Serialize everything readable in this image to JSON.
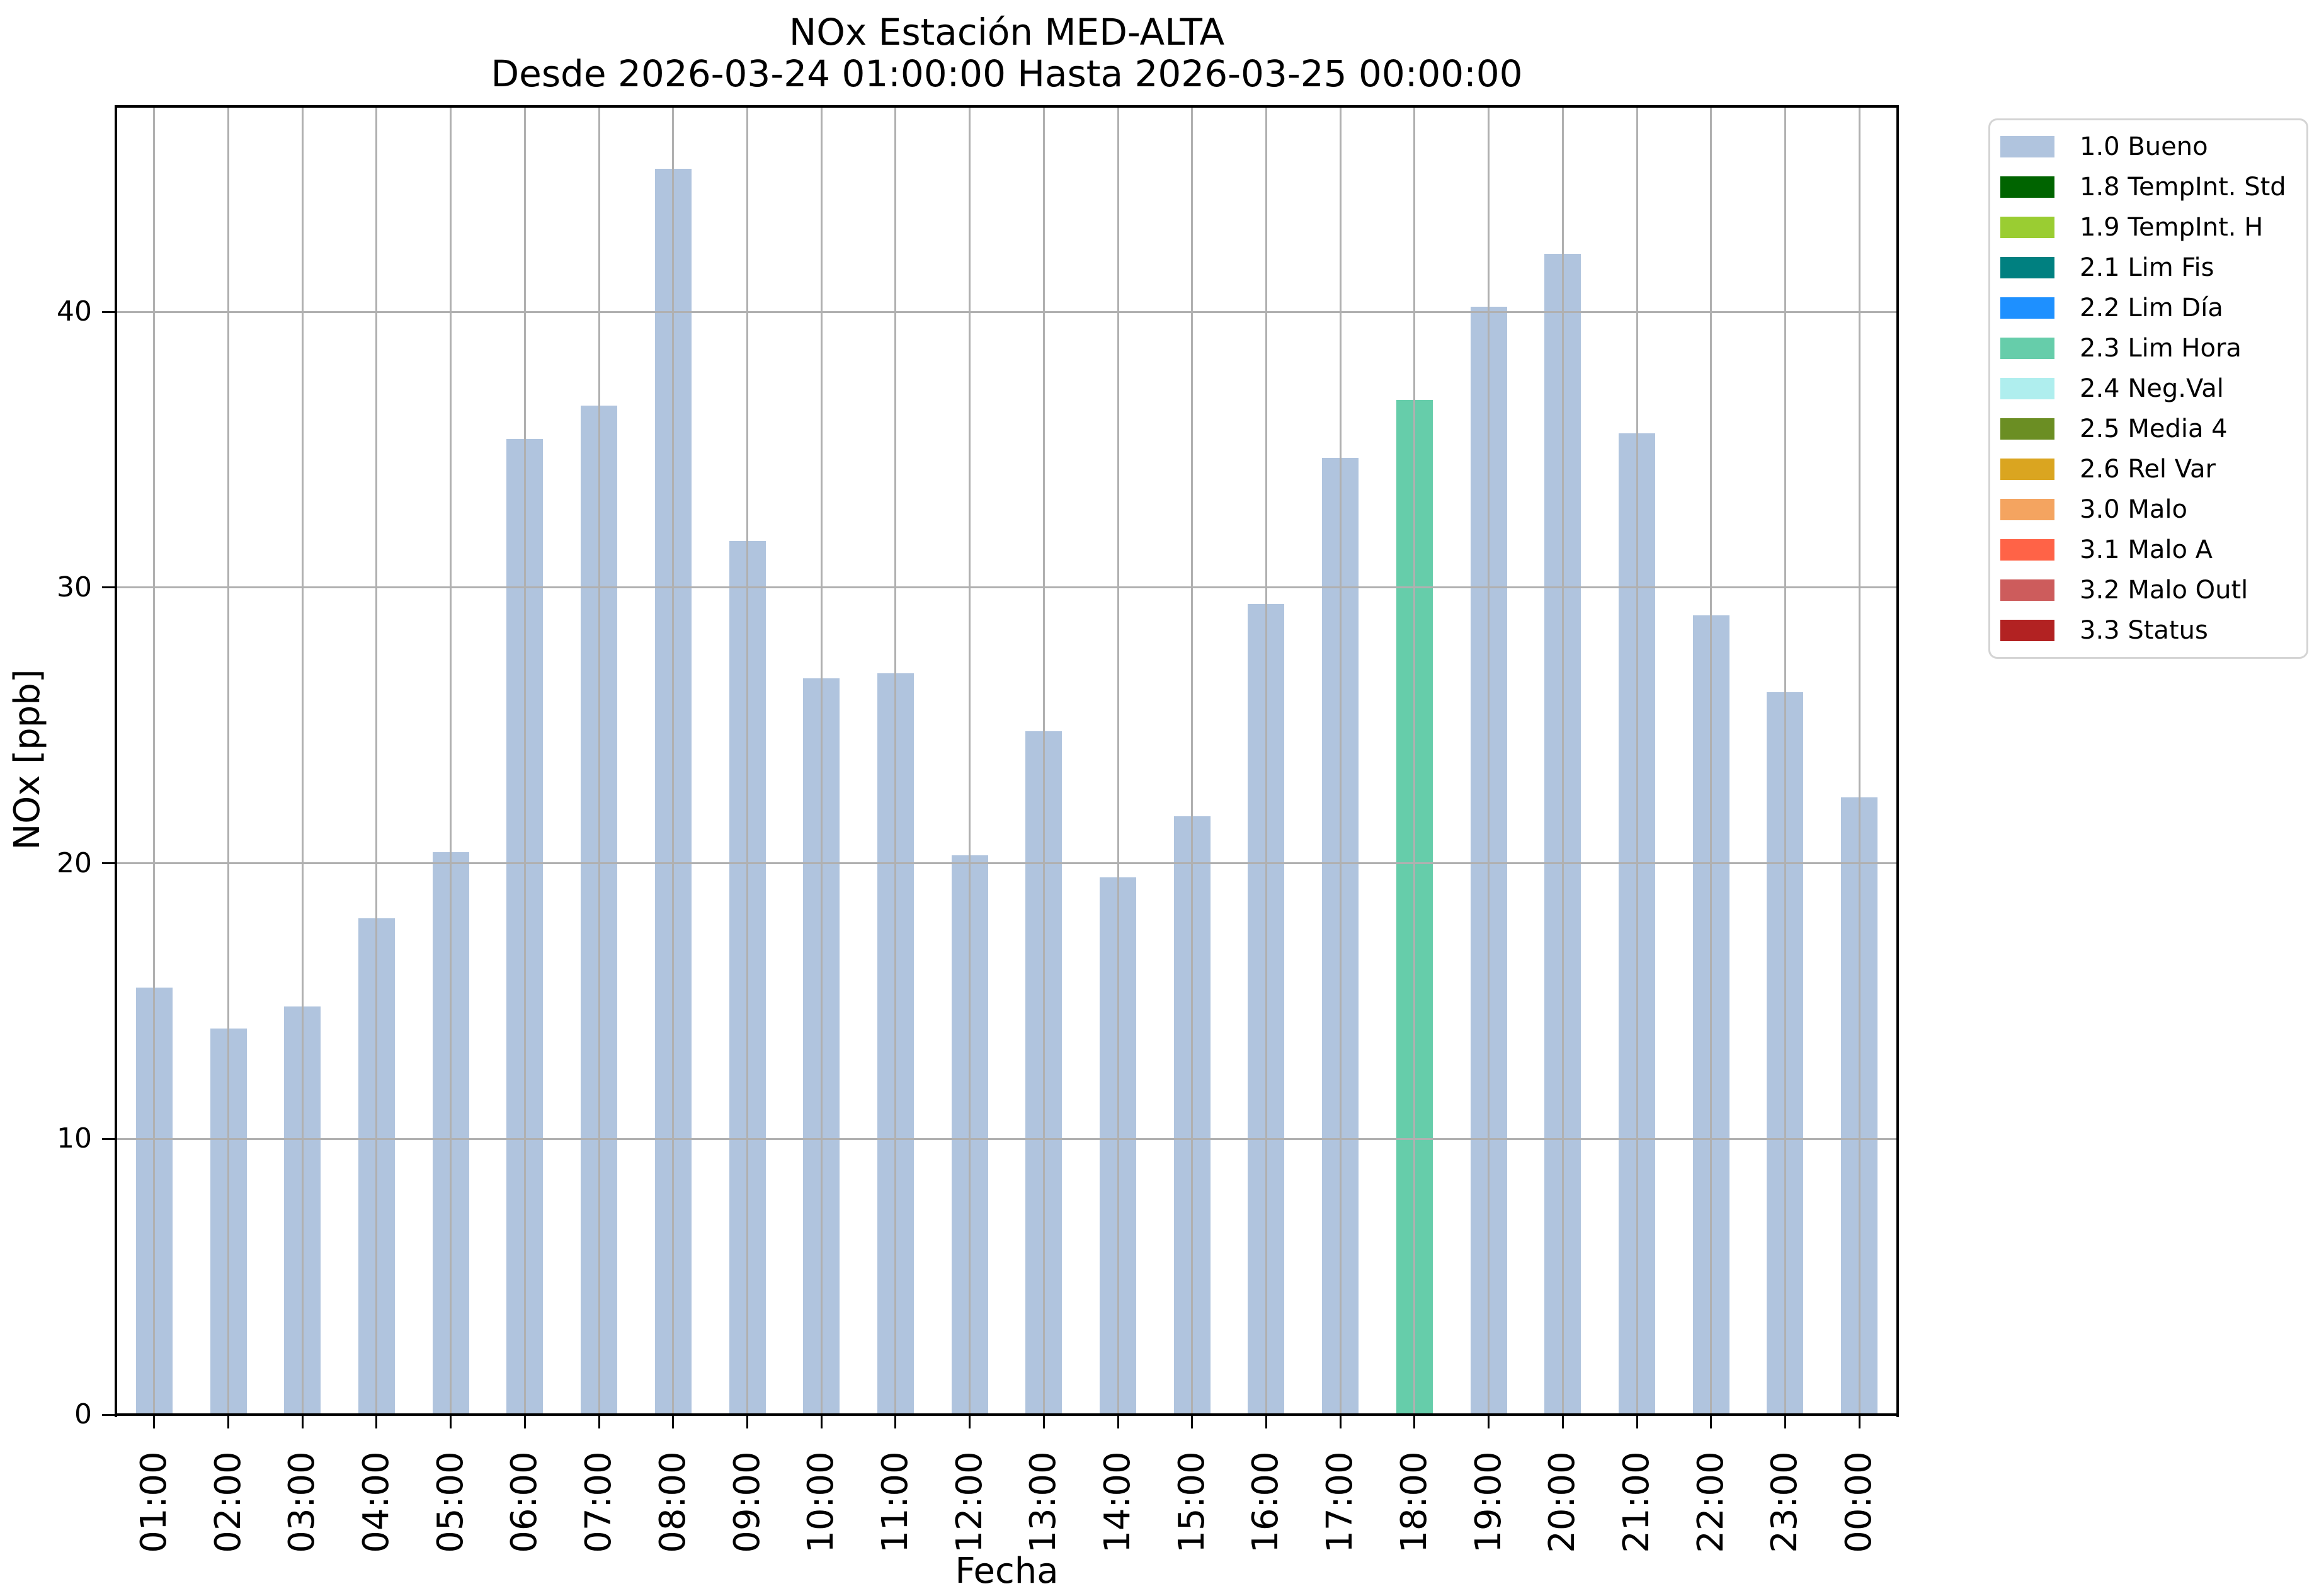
{
  "title": "NOx Estación MED-ALTA",
  "subtitle": "Desde 2026-03-24 01:00:00 Hasta 2026-03-25 00:00:00",
  "xlabel": "Fecha",
  "ylabel": "NOx [ppb]",
  "colors": {
    "background": "#ffffff",
    "grid": "#b0b0b0",
    "spine": "#000000",
    "legend_border": "#d4d4d4",
    "default_bar": "#b0c4de",
    "highlight_bar": "#66cdaa"
  },
  "chart_data": {
    "type": "bar",
    "title": "NOx Estación MED-ALTA",
    "subtitle": "Desde 2026-03-24 01:00:00 Hasta 2026-03-25 00:00:00",
    "xlabel": "Fecha",
    "ylabel": "NOx [ppb]",
    "ylim": [
      0,
      47.5
    ],
    "yticks": [
      0,
      10,
      20,
      30,
      40
    ],
    "grid": true,
    "legend_position": "upper right outside",
    "categories": [
      "01:00",
      "02:00",
      "03:00",
      "04:00",
      "05:00",
      "06:00",
      "07:00",
      "08:00",
      "09:00",
      "10:00",
      "11:00",
      "12:00",
      "13:00",
      "14:00",
      "15:00",
      "16:00",
      "17:00",
      "18:00",
      "19:00",
      "20:00",
      "21:00",
      "22:00",
      "23:00",
      "00:00"
    ],
    "values": [
      15.5,
      14.0,
      14.8,
      18.0,
      20.4,
      35.4,
      36.6,
      45.2,
      31.7,
      26.7,
      26.9,
      20.3,
      24.8,
      19.5,
      21.7,
      29.4,
      34.7,
      36.8,
      40.2,
      42.1,
      35.6,
      29.0,
      26.2,
      22.4
    ],
    "statuses": [
      "1.0 Bueno",
      "1.0 Bueno",
      "1.0 Bueno",
      "1.0 Bueno",
      "1.0 Bueno",
      "1.0 Bueno",
      "1.0 Bueno",
      "1.0 Bueno",
      "1.0 Bueno",
      "1.0 Bueno",
      "1.0 Bueno",
      "1.0 Bueno",
      "1.0 Bueno",
      "1.0 Bueno",
      "1.0 Bueno",
      "1.0 Bueno",
      "1.0 Bueno",
      "2.3 Lim Hora",
      "1.0 Bueno",
      "1.0 Bueno",
      "1.0 Bueno",
      "1.0 Bueno",
      "1.0 Bueno",
      "1.0 Bueno"
    ]
  },
  "legend": {
    "items": [
      {
        "label": "1.0 Bueno",
        "color": "#b0c4de"
      },
      {
        "label": "1.8 TempInt. Std",
        "color": "#006400"
      },
      {
        "label": "1.9 TempInt. H",
        "color": "#9acd32"
      },
      {
        "label": "2.1 Lim Fis",
        "color": "#008080"
      },
      {
        "label": "2.2 Lim Día",
        "color": "#1e90ff"
      },
      {
        "label": "2.3 Lim Hora",
        "color": "#66cdaa"
      },
      {
        "label": "2.4 Neg.Val",
        "color": "#afeeee"
      },
      {
        "label": "2.5 Media 4",
        "color": "#6b8e23"
      },
      {
        "label": "2.6 Rel Var",
        "color": "#daa520"
      },
      {
        "label": "3.0 Malo",
        "color": "#f4a460"
      },
      {
        "label": "3.1 Malo A",
        "color": "#ff6347"
      },
      {
        "label": "3.2 Malo Outl",
        "color": "#cd5c5c"
      },
      {
        "label": "3.3 Status",
        "color": "#b22222"
      }
    ]
  }
}
